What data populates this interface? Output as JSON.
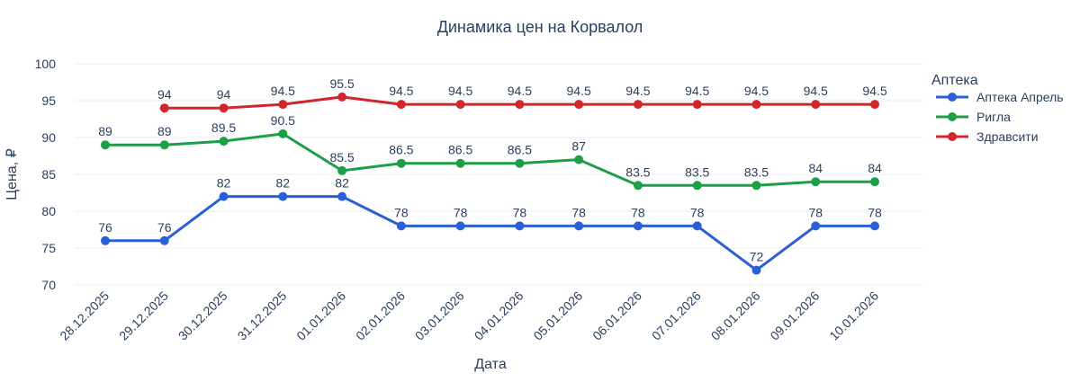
{
  "chart_data": {
    "type": "line",
    "title": "Динамика цен на Корвалол",
    "xlabel": "Дата",
    "ylabel": "Цена, ₽",
    "ylim": [
      70,
      100
    ],
    "yticks": [
      70,
      75,
      80,
      85,
      90,
      95,
      100
    ],
    "grid": true,
    "legend_title": "Аптека",
    "legend_position": "top-right",
    "categories": [
      "28.12.2025",
      "29.12.2025",
      "30.12.2025",
      "31.12.2025",
      "01.01.2026",
      "02.01.2026",
      "03.01.2026",
      "04.01.2026",
      "05.01.2026",
      "06.01.2026",
      "07.01.2026",
      "08.01.2026",
      "09.01.2026",
      "10.01.2026"
    ],
    "series": [
      {
        "name": "Аптека Апрель",
        "color": "#2a5fd6",
        "values": [
          76,
          76,
          82,
          82,
          82,
          78,
          78,
          78,
          78,
          78,
          78,
          72,
          78,
          78
        ],
        "labels": [
          "76",
          "76",
          "82",
          "82",
          "82",
          "78",
          "78",
          "78",
          "78",
          "78",
          "78",
          "72",
          "78",
          "78"
        ]
      },
      {
        "name": "Ригла",
        "color": "#1f9e48",
        "values": [
          89,
          89,
          89.5,
          90.5,
          85.5,
          86.5,
          86.5,
          86.5,
          87,
          83.5,
          83.5,
          83.5,
          84,
          84
        ],
        "labels": [
          "89",
          "89",
          "89.5",
          "90.5",
          "85.5",
          "86.5",
          "86.5",
          "86.5",
          "87",
          "83.5",
          "83.5",
          "83.5",
          "84",
          "84"
        ]
      },
      {
        "name": "Здравсити",
        "color": "#d1262b",
        "values": [
          null,
          94,
          94,
          94.5,
          95.5,
          94.5,
          94.5,
          94.5,
          94.5,
          94.5,
          94.5,
          94.5,
          94.5,
          94.5
        ],
        "labels": [
          null,
          "94",
          "94",
          "94.5",
          "95.5",
          "94.5",
          "94.5",
          "94.5",
          "94.5",
          "94.5",
          "94.5",
          "94.5",
          "94.5",
          "94.5"
        ]
      }
    ]
  }
}
